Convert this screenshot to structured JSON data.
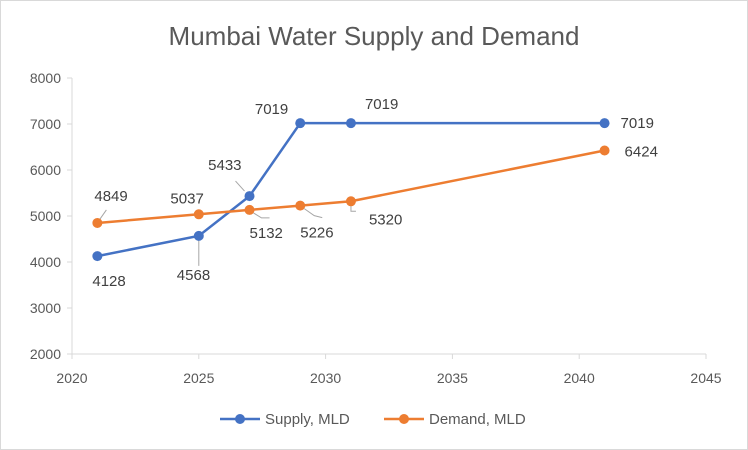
{
  "chart_data": {
    "type": "scatter",
    "title": "Mumbai Water Supply and Demand",
    "xlabel": "",
    "ylabel": "",
    "xlim": [
      2020,
      2045
    ],
    "ylim": [
      2000,
      8000
    ],
    "x_ticks": [
      2020,
      2025,
      2030,
      2035,
      2040,
      2045
    ],
    "y_ticks": [
      2000,
      3000,
      4000,
      5000,
      6000,
      7000,
      8000
    ],
    "grid": false,
    "legend_position": "bottom",
    "series": [
      {
        "name": "Supply, MLD",
        "color": "#4472C4",
        "x": [
          2021,
          2025,
          2027,
          2029,
          2031,
          2041
        ],
        "y": [
          4128,
          4568,
          5433,
          7019,
          7019,
          7019
        ],
        "labels": [
          "4128",
          "4568",
          "5433",
          "7019",
          "7019",
          "7019"
        ]
      },
      {
        "name": "Demand, MLD",
        "color": "#ED7D31",
        "x": [
          2021,
          2025,
          2027,
          2029,
          2031,
          2041
        ],
        "y": [
          4849,
          5037,
          5132,
          5226,
          5320,
          6424
        ],
        "labels": [
          "4849",
          "5037",
          "5132",
          "5226",
          "5320",
          "6424"
        ]
      }
    ]
  }
}
